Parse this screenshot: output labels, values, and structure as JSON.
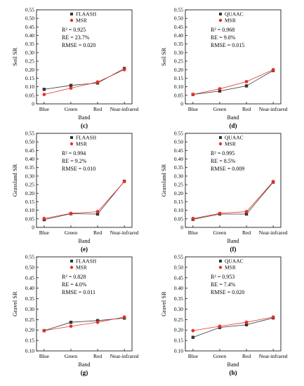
{
  "chart_data": [
    {
      "type": "line",
      "panel": "(c)",
      "ylabel": "Soil SR",
      "xlabel": "Band",
      "categories": [
        "Blue",
        "Green",
        "Red",
        "Near-infrared"
      ],
      "ylim": [
        0,
        0.55
      ],
      "yticks": [
        "0",
        "0.05",
        "0.10",
        "0.15",
        "0.20",
        "0.25",
        "0.30",
        "0.35",
        "0.40",
        "0.45",
        "0.50",
        "0.55"
      ],
      "series": [
        {
          "name": "FLAASH",
          "marker": "square",
          "color": "#333333",
          "values": [
            0.085,
            0.108,
            0.122,
            0.207
          ]
        },
        {
          "name": "MSR",
          "marker": "circle",
          "color": "#e8302a",
          "values": [
            0.055,
            0.092,
            0.128,
            0.2
          ]
        }
      ],
      "stats": [
        "R² = 0.925",
        "RE = 23.7%",
        "RMSE = 0.020"
      ]
    },
    {
      "type": "line",
      "panel": "(d)",
      "ylabel": "Soil SR",
      "xlabel": "Band",
      "categories": [
        "Blue",
        "Green",
        "Red",
        "Near-infrared"
      ],
      "ylim": [
        0,
        0.55
      ],
      "yticks": [
        "0",
        "0.05",
        "0.10",
        "0.15",
        "0.20",
        "0.25",
        "0.30",
        "0.35",
        "0.40",
        "0.45",
        "0.50",
        "0.55"
      ],
      "series": [
        {
          "name": "QUAAC",
          "marker": "square",
          "color": "#333333",
          "values": [
            0.055,
            0.075,
            0.105,
            0.195
          ]
        },
        {
          "name": "MSR",
          "marker": "circle",
          "color": "#e8302a",
          "values": [
            0.055,
            0.088,
            0.13,
            0.2
          ]
        }
      ],
      "stats": [
        "R² = 0.968",
        "RE = 9.8%",
        "RMSE = 0.015"
      ]
    },
    {
      "type": "line",
      "panel": "(e)",
      "ylabel": "Grassland SR",
      "xlabel": "Band",
      "categories": [
        "Blue",
        "Green",
        "Red",
        "Near-infrared"
      ],
      "ylim": [
        0,
        0.55
      ],
      "yticks": [
        "0",
        "0.05",
        "0.10",
        "0.15",
        "0.20",
        "0.25",
        "0.30",
        "0.35",
        "0.40",
        "0.45",
        "0.50",
        "0.55"
      ],
      "series": [
        {
          "name": "FLAASH",
          "marker": "square",
          "color": "#333333",
          "values": [
            0.045,
            0.08,
            0.078,
            0.27
          ]
        },
        {
          "name": "MSR",
          "marker": "circle",
          "color": "#e8302a",
          "values": [
            0.052,
            0.082,
            0.092,
            0.268
          ]
        }
      ],
      "stats": [
        "R² = 0.994",
        "RE = 9.2%",
        "RMSE = 0.010"
      ]
    },
    {
      "type": "line",
      "panel": "(f)",
      "ylabel": "Grassland SR",
      "xlabel": "Band",
      "categories": [
        "Blue",
        "Green",
        "Red",
        "Near-infrared"
      ],
      "ylim": [
        0,
        0.55
      ],
      "yticks": [
        "0",
        "0.05",
        "0.10",
        "0.15",
        "0.20",
        "0.25",
        "0.30",
        "0.35",
        "0.40",
        "0.45",
        "0.50",
        "0.55"
      ],
      "series": [
        {
          "name": "QUAAC",
          "marker": "square",
          "color": "#333333",
          "values": [
            0.047,
            0.078,
            0.078,
            0.265
          ]
        },
        {
          "name": "MSR",
          "marker": "circle",
          "color": "#e8302a",
          "values": [
            0.052,
            0.082,
            0.092,
            0.268
          ]
        }
      ],
      "stats": [
        "R² = 0.995",
        "RE = 8.5%",
        "RMSE = 0.009"
      ]
    },
    {
      "type": "line",
      "panel": "(g)",
      "ylabel": "Gravel SR",
      "xlabel": "Band",
      "categories": [
        "Blue",
        "Green",
        "Red",
        "Near-infrared"
      ],
      "ylim": [
        0.1,
        0.55
      ],
      "yticks": [
        "0.10",
        "0.15",
        "0.20",
        "0.25",
        "0.30",
        "0.35",
        "0.40",
        "0.45",
        "0.50",
        "0.55"
      ],
      "series": [
        {
          "name": "FLAASH",
          "marker": "square",
          "color": "#333333",
          "values": [
            0.197,
            0.237,
            0.245,
            0.257
          ]
        },
        {
          "name": "MSR",
          "marker": "circle",
          "color": "#e8302a",
          "values": [
            0.197,
            0.218,
            0.237,
            0.262
          ]
        }
      ],
      "stats": [
        "R² = 0.828",
        "RE = 4.0%",
        "RMSE = 0.011"
      ]
    },
    {
      "type": "line",
      "panel": "(h)",
      "ylabel": "Gravel SR",
      "xlabel": "Band",
      "categories": [
        "Blue",
        "Green",
        "Red",
        "Near-infrared"
      ],
      "ylim": [
        0.1,
        0.55
      ],
      "yticks": [
        "0.10",
        "0.15",
        "0.20",
        "0.25",
        "0.30",
        "0.35",
        "0.40",
        "0.45",
        "0.50",
        "0.55"
      ],
      "series": [
        {
          "name": "QUAAC",
          "marker": "square",
          "color": "#333333",
          "values": [
            0.165,
            0.212,
            0.225,
            0.258
          ]
        },
        {
          "name": "MSR",
          "marker": "circle",
          "color": "#e8302a",
          "values": [
            0.197,
            0.218,
            0.237,
            0.262
          ]
        }
      ],
      "stats": [
        "R² = 0.953",
        "RE = 7.4%",
        "RMSE = 0.020"
      ]
    }
  ]
}
